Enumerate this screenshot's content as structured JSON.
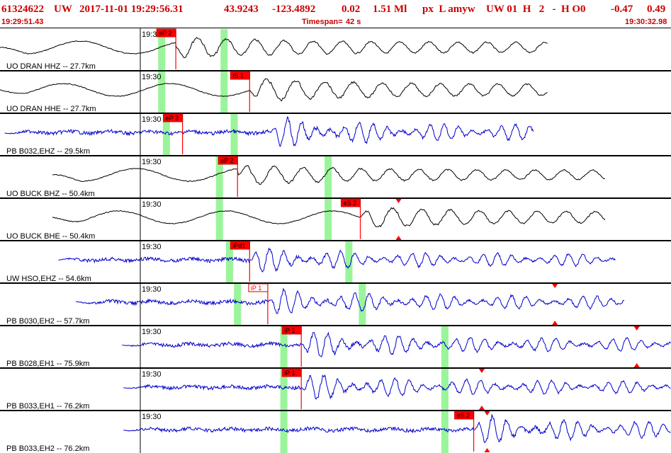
{
  "header": {
    "event_id": "61324622",
    "network": "UW",
    "datetime": "2017-11-01 19:29:56.31",
    "latitude": "43.9243",
    "longitude": "-123.4892",
    "depth": "0.02",
    "magnitude": "1.51 Ml",
    "flags": "px  L amyw",
    "source": "UW 01  H   2   -  H O0",
    "value_a": "-0.47",
    "value_b": "0.49",
    "start_time": "19:29:51.43",
    "timespan_label": "Timespan=",
    "timespan_value": "42 s",
    "end_time": "19:30:32.98"
  },
  "colors": {
    "header_text": "#cc0000",
    "pick_flag": "#ff0000",
    "pick_flag_outline": "#cc0000",
    "green_band": "#9af59a",
    "trace_black": "#000000",
    "trace_blue": "#0000cc",
    "divider": "#000000"
  },
  "panels": [
    {
      "label": "UO DRAN HHZ -- 27.7km",
      "time_tick": "19:30",
      "color": "black",
      "start": 0.0,
      "end": 0.817,
      "onset": 0.262,
      "amp": 0.7,
      "smooth": true,
      "bands": [
        0.241,
        0.334
      ],
      "picks": [
        {
          "label": "eP 2",
          "pos": 0.262,
          "filled": true
        }
      ],
      "triangles": []
    },
    {
      "label": "UO DRAN HHE -- 27.7km",
      "time_tick": "19:30",
      "color": "black",
      "start": 0.0,
      "end": 0.817,
      "onset": 0.372,
      "amp": 0.75,
      "smooth": true,
      "bands": [
        0.241,
        0.334
      ],
      "picks": [
        {
          "label": "iS 1",
          "pos": 0.372,
          "filled": true
        }
      ],
      "triangles": []
    },
    {
      "label": "PB B032,EHZ -- 29.5km",
      "time_tick": "19:30",
      "color": "blue",
      "start": 0.007,
      "end": 0.795,
      "onset": 0.403,
      "amp": 0.9,
      "smooth": false,
      "bands": [
        0.248,
        0.349
      ],
      "picks": [
        {
          "label": "eP 3",
          "pos": 0.272,
          "filled": true
        }
      ],
      "triangles": []
    },
    {
      "label": "UO BUCK BHZ -- 50.4km",
      "time_tick": "19:30",
      "color": "black",
      "start": 0.078,
      "end": 0.903,
      "onset": 0.354,
      "amp": 0.65,
      "smooth": true,
      "bands": [
        0.327,
        0.489
      ],
      "picks": [
        {
          "label": "eP 2",
          "pos": 0.354,
          "filled": true
        }
      ],
      "triangles": []
    },
    {
      "label": "UO BUCK BHE -- 50.4km",
      "time_tick": "19:30",
      "color": "black",
      "start": 0.078,
      "end": 0.903,
      "onset": 0.537,
      "amp": 0.7,
      "smooth": true,
      "bands": [
        0.327,
        0.489
      ],
      "picks": [
        {
          "label": "eS 2",
          "pos": 0.537,
          "filled": true
        }
      ],
      "triangles": [
        {
          "pos": 0.594,
          "dir": "down"
        },
        {
          "pos": 0.594,
          "dir": "up"
        }
      ]
    },
    {
      "label": "UW HSO,EHZ -- 54.6km",
      "time_tick": "19:30",
      "color": "blue",
      "start": 0.087,
      "end": 0.918,
      "onset": 0.372,
      "amp": 0.75,
      "smooth": false,
      "bands": [
        0.342,
        0.52
      ],
      "picks": [
        {
          "label": "iPd1",
          "pos": 0.372,
          "filled": true
        }
      ],
      "triangles": []
    },
    {
      "label": "PB B030,EH2 -- 57.7km",
      "time_tick": "19:30",
      "color": "blue",
      "start": 0.113,
      "end": 0.931,
      "onset": 0.399,
      "amp": 0.8,
      "smooth": false,
      "bands": [
        0.354,
        0.54
      ],
      "picks": [
        {
          "label": "iP 1",
          "pos": 0.399,
          "filled": false
        }
      ],
      "triangles": [
        {
          "pos": 0.827,
          "dir": "down"
        },
        {
          "pos": 0.827,
          "dir": "up"
        }
      ]
    },
    {
      "label": "PB B028,EH1 -- 75.9km",
      "time_tick": "19:30",
      "color": "blue",
      "start": 0.182,
      "end": 1.0,
      "onset": 0.449,
      "amp": 0.8,
      "smooth": false,
      "bands": [
        0.423,
        0.663
      ],
      "picks": [
        {
          "label": "iP 1",
          "pos": 0.449,
          "filled": true
        }
      ],
      "triangles": [
        {
          "pos": 0.949,
          "dir": "down"
        },
        {
          "pos": 0.949,
          "dir": "up"
        }
      ]
    },
    {
      "label": "PB B033,EH1 -- 76.2km",
      "time_tick": "19:30",
      "color": "blue",
      "start": 0.184,
      "end": 1.0,
      "onset": 0.449,
      "amp": 0.8,
      "smooth": false,
      "bands": [
        0.423,
        0.663
      ],
      "picks": [
        {
          "label": "iP 1",
          "pos": 0.449,
          "filled": true
        }
      ],
      "triangles": [
        {
          "pos": 0.718,
          "dir": "down"
        },
        {
          "pos": 0.718,
          "dir": "up"
        }
      ]
    },
    {
      "label": "PB B033,EH2 -- 76.2km",
      "time_tick": "19:30",
      "color": "blue",
      "start": 0.184,
      "end": 1.0,
      "onset": 0.706,
      "amp": 0.85,
      "smooth": false,
      "bands": [
        0.423,
        0.663
      ],
      "picks": [
        {
          "label": "eS 2",
          "pos": 0.706,
          "filled": true
        }
      ],
      "triangles": [
        {
          "pos": 0.726,
          "dir": "down"
        },
        {
          "pos": 0.726,
          "dir": "up"
        }
      ]
    }
  ]
}
